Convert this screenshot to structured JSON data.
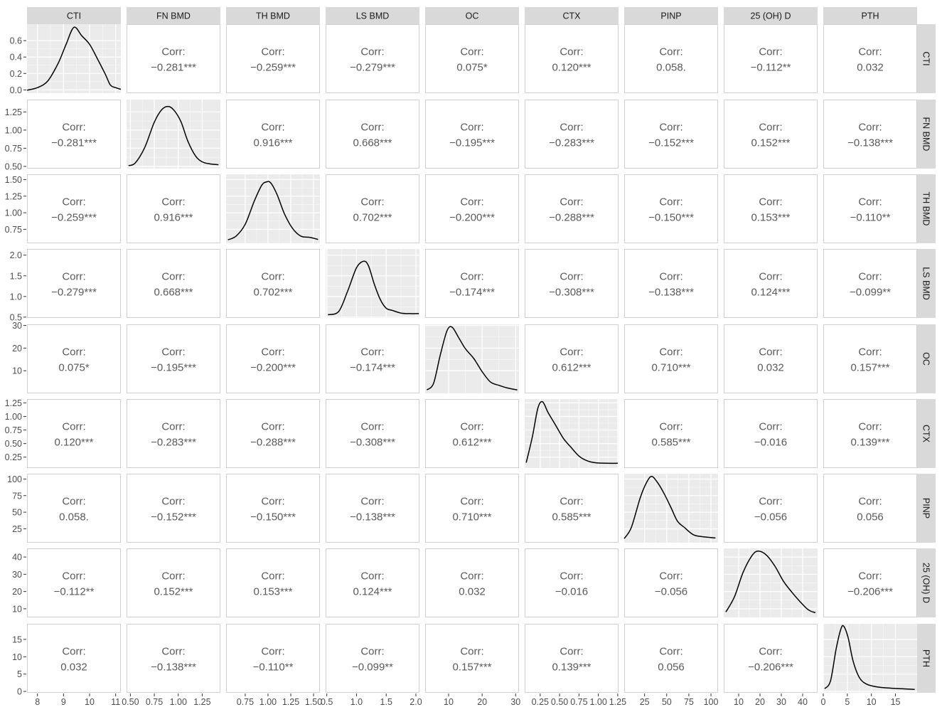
{
  "chart_data": {
    "type": "scatter-matrix",
    "title": "",
    "variables": [
      "CTI",
      "FN BMD",
      "TH BMD",
      "LS BMD",
      "OC",
      "CTX",
      "PINP",
      "25 (OH) D",
      "PTH"
    ],
    "corr_label": "Corr:",
    "correlations": [
      [
        "",
        "−0.281***",
        "−0.259***",
        "−0.279***",
        "0.075*",
        "0.120***",
        "0.058.",
        "−0.112**",
        "0.032"
      ],
      [
        "−0.281***",
        "",
        "0.916***",
        "0.668***",
        "−0.195***",
        "−0.283***",
        "−0.152***",
        "0.152***",
        "−0.138***"
      ],
      [
        "−0.259***",
        "0.916***",
        "",
        "0.702***",
        "−0.200***",
        "−0.288***",
        "−0.150***",
        "0.153***",
        "−0.110**"
      ],
      [
        "−0.279***",
        "0.668***",
        "0.702***",
        "",
        "−0.174***",
        "−0.308***",
        "−0.138***",
        "0.124***",
        "−0.099**"
      ],
      [
        "0.075*",
        "−0.195***",
        "−0.200***",
        "−0.174***",
        "",
        "0.612***",
        "0.710***",
        "0.032",
        "0.157***"
      ],
      [
        "0.120***",
        "−0.283***",
        "−0.288***",
        "−0.308***",
        "0.612***",
        "",
        "0.585***",
        "−0.016",
        "0.139***"
      ],
      [
        "0.058.",
        "−0.152***",
        "−0.150***",
        "−0.138***",
        "0.710***",
        "0.585***",
        "",
        "−0.056",
        "0.056"
      ],
      [
        "−0.112**",
        "0.152***",
        "0.153***",
        "0.124***",
        "0.032",
        "−0.016",
        "−0.056",
        "",
        "−0.206***"
      ],
      [
        "0.032",
        "−0.138***",
        "−0.110**",
        "−0.099**",
        "0.157***",
        "0.139***",
        "0.056",
        "−0.206***",
        ""
      ]
    ],
    "y_axes": [
      {
        "ticks": [
          "0.0",
          "0.2",
          "0.4",
          "0.6"
        ],
        "values": [
          0,
          0.2,
          0.4,
          0.6
        ],
        "range": [
          -0.04,
          0.8
        ]
      },
      {
        "ticks": [
          "0.50",
          "0.75",
          "1.00",
          "1.25"
        ],
        "values": [
          0.5,
          0.75,
          1.0,
          1.25
        ],
        "range": [
          0.47,
          1.42
        ]
      },
      {
        "ticks": [
          "0.75",
          "1.00",
          "1.25",
          "1.50"
        ],
        "values": [
          0.75,
          1.0,
          1.25,
          1.5
        ],
        "range": [
          0.54,
          1.58
        ]
      },
      {
        "ticks": [
          "0.5",
          "1.0",
          "1.5",
          "2.0"
        ],
        "values": [
          0.5,
          1.0,
          1.5,
          2.0
        ],
        "range": [
          0.48,
          2.15
        ]
      },
      {
        "ticks": [
          "10",
          "20",
          "30"
        ],
        "values": [
          10,
          20,
          30
        ],
        "range": [
          0,
          30.5
        ]
      },
      {
        "ticks": [
          "0.25",
          "0.50",
          "0.75",
          "1.00",
          "1.25"
        ],
        "values": [
          0.25,
          0.5,
          0.75,
          1.0,
          1.25
        ],
        "range": [
          0.05,
          1.32
        ]
      },
      {
        "ticks": [
          "25",
          "50",
          "75",
          "100"
        ],
        "values": [
          25,
          50,
          75,
          100
        ],
        "range": [
          4,
          108
        ]
      },
      {
        "ticks": [
          "10",
          "20",
          "30",
          "40"
        ],
        "values": [
          10,
          20,
          30,
          40
        ],
        "range": [
          5,
          45
        ]
      },
      {
        "ticks": [
          "0",
          "5",
          "10",
          "15"
        ],
        "values": [
          0,
          5,
          10,
          15
        ],
        "range": [
          -0.4,
          19.5
        ]
      }
    ],
    "x_axes": [
      {
        "ticks": [
          "8",
          "9",
          "10",
          "11"
        ],
        "values": [
          8,
          9,
          10,
          11
        ],
        "range": [
          7.6,
          11.2
        ]
      },
      {
        "ticks": [
          "0.50",
          "0.75",
          "1.00",
          "1.25"
        ],
        "values": [
          0.5,
          0.75,
          1.0,
          1.25
        ],
        "range": [
          0.46,
          1.44
        ]
      },
      {
        "ticks": [
          "0.75",
          "1.00",
          "1.25",
          "1.50"
        ],
        "values": [
          0.75,
          1.0,
          1.25,
          1.5
        ],
        "range": [
          0.54,
          1.57
        ]
      },
      {
        "ticks": [
          "0.5",
          "1.0",
          "1.5",
          "2.0"
        ],
        "values": [
          0.5,
          1.0,
          1.5,
          2.0
        ],
        "range": [
          0.48,
          2.06
        ]
      },
      {
        "ticks": [
          "10",
          "20",
          "30"
        ],
        "values": [
          10,
          20,
          30
        ],
        "range": [
          3,
          31
        ]
      },
      {
        "ticks": [
          "0.25",
          "0.50",
          "0.75",
          "1.00",
          "1.25"
        ],
        "values": [
          0.25,
          0.5,
          0.75,
          1.0,
          1.25
        ],
        "range": [
          0.05,
          1.26
        ]
      },
      {
        "ticks": [
          "25",
          "50",
          "75",
          "100"
        ],
        "values": [
          25,
          50,
          75,
          100
        ],
        "range": [
          2,
          108
        ]
      },
      {
        "ticks": [
          "10",
          "20",
          "30",
          "40"
        ],
        "values": [
          10,
          20,
          30,
          40
        ],
        "range": [
          3,
          47
        ]
      },
      {
        "ticks": [
          "0",
          "5",
          "10",
          "15"
        ],
        "values": [
          0,
          5,
          10,
          15
        ],
        "range": [
          0,
          19.5
        ]
      }
    ],
    "density_y_ranges": [
      [
        0,
        0.77
      ],
      [
        0,
        1.55
      ],
      [
        0,
        1.55
      ],
      [
        0,
        1.2
      ],
      [
        0,
        1.0
      ],
      [
        0,
        1.0
      ],
      [
        0,
        1.0
      ],
      [
        0,
        1.0
      ],
      [
        0,
        1.0
      ]
    ],
    "densities": [
      [
        [
          7.6,
          0.01
        ],
        [
          8.0,
          0.04
        ],
        [
          8.4,
          0.12
        ],
        [
          8.8,
          0.33
        ],
        [
          9.1,
          0.55
        ],
        [
          9.4,
          0.75
        ],
        [
          9.7,
          0.65
        ],
        [
          10.0,
          0.55
        ],
        [
          10.3,
          0.38
        ],
        [
          10.6,
          0.2
        ],
        [
          10.8,
          0.07
        ],
        [
          11.0,
          0.04
        ],
        [
          11.2,
          0.02
        ]
      ],
      [
        [
          0.48,
          0.02
        ],
        [
          0.55,
          0.08
        ],
        [
          0.65,
          0.45
        ],
        [
          0.75,
          1.05
        ],
        [
          0.83,
          1.35
        ],
        [
          0.9,
          1.42
        ],
        [
          0.96,
          1.32
        ],
        [
          1.03,
          1.05
        ],
        [
          1.1,
          0.6
        ],
        [
          1.18,
          0.25
        ],
        [
          1.25,
          0.11
        ],
        [
          1.33,
          0.06
        ],
        [
          1.42,
          0.04
        ]
      ],
      [
        [
          0.56,
          0.03
        ],
        [
          0.65,
          0.12
        ],
        [
          0.75,
          0.4
        ],
        [
          0.85,
          0.95
        ],
        [
          0.93,
          1.32
        ],
        [
          0.98,
          1.4
        ],
        [
          1.03,
          1.38
        ],
        [
          1.1,
          1.1
        ],
        [
          1.18,
          0.65
        ],
        [
          1.27,
          0.3
        ],
        [
          1.36,
          0.12
        ],
        [
          1.46,
          0.09
        ],
        [
          1.55,
          0.04
        ]
      ],
      [
        [
          0.52,
          0.02
        ],
        [
          0.7,
          0.08
        ],
        [
          0.85,
          0.45
        ],
        [
          1.0,
          0.88
        ],
        [
          1.12,
          1.0
        ],
        [
          1.2,
          0.92
        ],
        [
          1.3,
          0.58
        ],
        [
          1.4,
          0.3
        ],
        [
          1.5,
          0.14
        ],
        [
          1.6,
          0.1
        ],
        [
          1.75,
          0.05
        ],
        [
          1.9,
          0.04
        ],
        [
          2.05,
          0.04
        ]
      ],
      [
        [
          3.5,
          0.02
        ],
        [
          5.5,
          0.12
        ],
        [
          7.5,
          0.55
        ],
        [
          9.5,
          0.92
        ],
        [
          11.0,
          0.98
        ],
        [
          13.0,
          0.82
        ],
        [
          15.0,
          0.65
        ],
        [
          17.5,
          0.5
        ],
        [
          20.0,
          0.3
        ],
        [
          22.5,
          0.14
        ],
        [
          25.0,
          0.09
        ],
        [
          27.5,
          0.05
        ],
        [
          30.5,
          0.02
        ]
      ],
      [
        [
          0.07,
          0.05
        ],
        [
          0.15,
          0.45
        ],
        [
          0.22,
          0.88
        ],
        [
          0.28,
          0.98
        ],
        [
          0.35,
          0.82
        ],
        [
          0.45,
          0.62
        ],
        [
          0.55,
          0.42
        ],
        [
          0.65,
          0.28
        ],
        [
          0.75,
          0.15
        ],
        [
          0.85,
          0.08
        ],
        [
          0.95,
          0.05
        ],
        [
          1.1,
          0.04
        ],
        [
          1.25,
          0.04
        ]
      ],
      [
        [
          2.0,
          0.03
        ],
        [
          10.0,
          0.2
        ],
        [
          20.0,
          0.65
        ],
        [
          27.0,
          0.88
        ],
        [
          33.0,
          0.98
        ],
        [
          40.0,
          0.88
        ],
        [
          47.0,
          0.72
        ],
        [
          55.0,
          0.5
        ],
        [
          62.0,
          0.3
        ],
        [
          70.0,
          0.2
        ],
        [
          80.0,
          0.09
        ],
        [
          90.0,
          0.06
        ],
        [
          105.0,
          0.04
        ]
      ],
      [
        [
          4.0,
          0.05
        ],
        [
          8.0,
          0.28
        ],
        [
          12.0,
          0.65
        ],
        [
          16.0,
          0.9
        ],
        [
          19.0,
          0.98
        ],
        [
          23.0,
          0.92
        ],
        [
          27.0,
          0.75
        ],
        [
          31.0,
          0.52
        ],
        [
          35.0,
          0.35
        ],
        [
          39.0,
          0.2
        ],
        [
          42.0,
          0.1
        ],
        [
          44.0,
          0.06
        ],
        [
          46.0,
          0.04
        ]
      ],
      [
        [
          0.3,
          0.03
        ],
        [
          1.5,
          0.15
        ],
        [
          2.7,
          0.65
        ],
        [
          3.7,
          0.95
        ],
        [
          4.3,
          0.98
        ],
        [
          5.2,
          0.8
        ],
        [
          6.2,
          0.45
        ],
        [
          7.5,
          0.2
        ],
        [
          9.0,
          0.1
        ],
        [
          11.0,
          0.06
        ],
        [
          13.5,
          0.04
        ],
        [
          16.0,
          0.03
        ],
        [
          19.0,
          0.02
        ]
      ]
    ],
    "grid": true,
    "colors": {
      "strip_bg": "#d9d9d9",
      "density_panel_bg": "#ebebeb",
      "grid_major": "#ffffff",
      "panel_border": "#d0d0d0",
      "corr_text": "#5a5a5a",
      "axis_text": "#4d4d4d",
      "line": "#000000"
    }
  }
}
